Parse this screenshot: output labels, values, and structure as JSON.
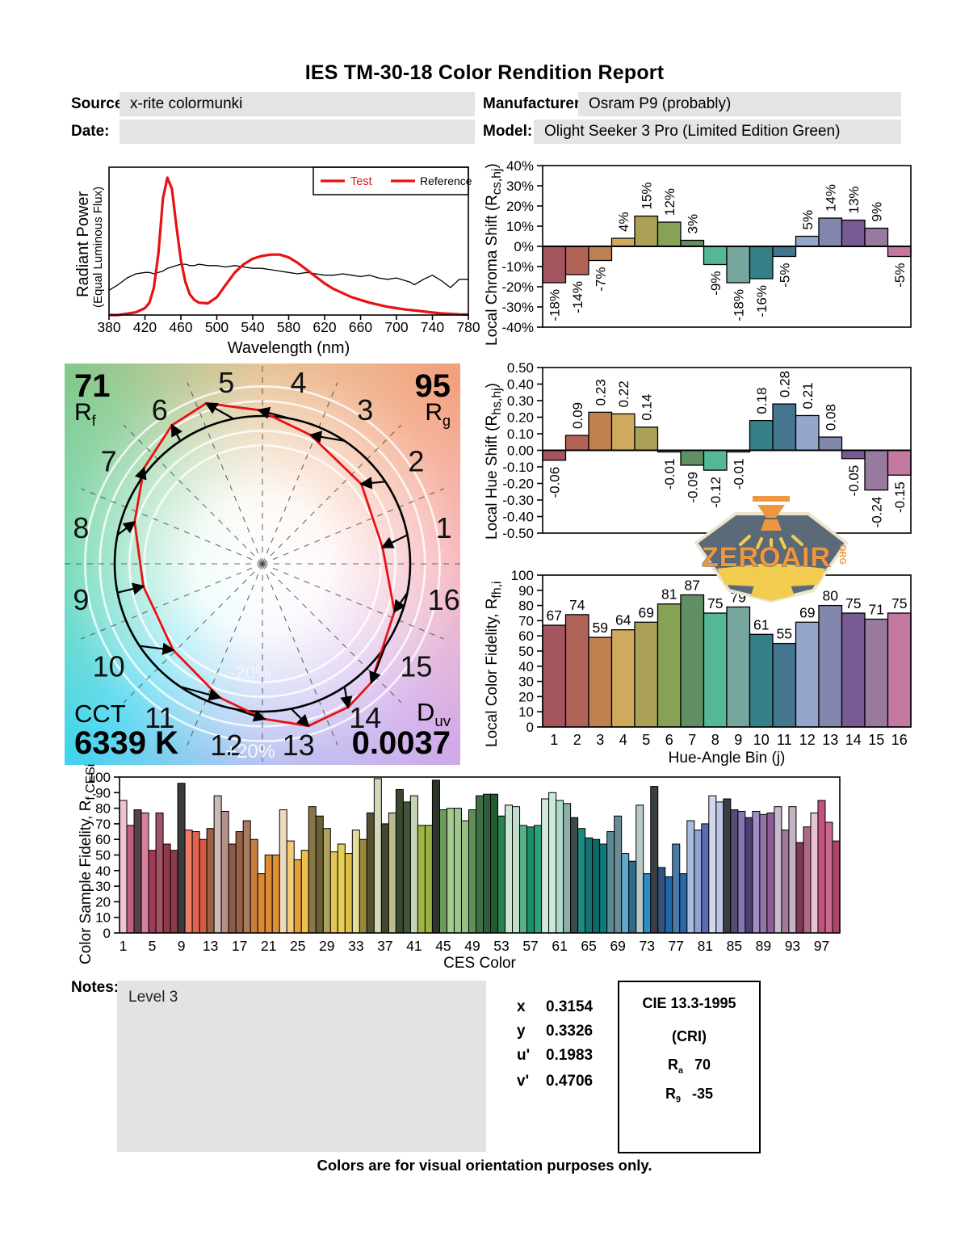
{
  "title": "IES TM-30-18 Color Rendition Report",
  "meta": {
    "source_label": "Source:",
    "source_value": "x-rite colormunki",
    "manufacturer_label": "Manufacturer:",
    "manufacturer_value": "Osram P9 (probably)",
    "date_label": "Date:",
    "date_value": "",
    "model_label": "Model:",
    "model_value": "Olight Seeker 3 Pro (Limited Edition Green)"
  },
  "colors": {
    "accent_red": "#e81113",
    "field_bg": "#e4e4e4",
    "bin_colors": [
      "#a4555e",
      "#b26358",
      "#c08150",
      "#cfa95e",
      "#aaa156",
      "#87a156",
      "#5f8f62",
      "#55b895",
      "#76a69e",
      "#338087",
      "#45768f",
      "#96a5cc",
      "#8487ad",
      "#765a93",
      "#977a9e",
      "#c579a0"
    ]
  },
  "chart_data": [
    {
      "id": "spd",
      "type": "line",
      "xlabel": "Wavelength (nm)",
      "ylabel_line1": "Radiant Power",
      "ylabel_line2": "(Equal Luminous Flux)",
      "xlim": [
        380,
        780
      ],
      "grid": false,
      "legend_position": "top-right",
      "x_ticks": [
        380,
        420,
        460,
        500,
        540,
        580,
        620,
        660,
        700,
        740,
        780
      ],
      "series": [
        {
          "name": "Test",
          "color": "#e81113",
          "x": [
            380,
            390,
            400,
            410,
            420,
            425,
            430,
            435,
            440,
            445,
            450,
            455,
            460,
            465,
            470,
            475,
            480,
            490,
            500,
            510,
            520,
            530,
            540,
            550,
            560,
            570,
            580,
            590,
            600,
            610,
            620,
            630,
            640,
            650,
            660,
            670,
            680,
            690,
            700,
            710,
            715,
            720,
            725,
            730,
            740,
            750,
            760,
            770,
            780
          ],
          "y": [
            0,
            0,
            0.01,
            0.02,
            0.05,
            0.09,
            0.2,
            0.45,
            0.85,
            1.0,
            0.92,
            0.65,
            0.4,
            0.24,
            0.15,
            0.11,
            0.09,
            0.085,
            0.13,
            0.22,
            0.31,
            0.37,
            0.41,
            0.43,
            0.44,
            0.44,
            0.42,
            0.38,
            0.33,
            0.28,
            0.23,
            0.19,
            0.16,
            0.13,
            0.11,
            0.09,
            0.075,
            0.06,
            0.05,
            0.04,
            0.037,
            0.033,
            0.03,
            0.026,
            0.018,
            0.012,
            0.008,
            0.005,
            0.003
          ]
        },
        {
          "name": "Reference",
          "color": "#000000",
          "x": [
            380,
            390,
            400,
            410,
            420,
            425,
            430,
            435,
            440,
            445,
            450,
            455,
            460,
            465,
            470,
            475,
            480,
            490,
            500,
            510,
            520,
            530,
            540,
            550,
            560,
            570,
            580,
            590,
            600,
            610,
            620,
            630,
            640,
            650,
            660,
            670,
            680,
            690,
            700,
            710,
            715,
            720,
            725,
            730,
            740,
            750,
            760,
            770,
            780
          ],
          "y": [
            0.18,
            0.22,
            0.27,
            0.3,
            0.31,
            0.31,
            0.3,
            0.31,
            0.32,
            0.34,
            0.35,
            0.36,
            0.37,
            0.37,
            0.36,
            0.36,
            0.37,
            0.36,
            0.36,
            0.35,
            0.36,
            0.35,
            0.34,
            0.34,
            0.33,
            0.32,
            0.31,
            0.3,
            0.31,
            0.3,
            0.29,
            0.29,
            0.3,
            0.29,
            0.28,
            0.29,
            0.27,
            0.26,
            0.27,
            0.25,
            0.24,
            0.22,
            0.24,
            0.26,
            0.29,
            0.25,
            0.2,
            0.26,
            0.26
          ]
        }
      ]
    },
    {
      "id": "local_chroma_shift",
      "type": "bar",
      "ylabel_main": "Local Chroma Shift (R",
      "ylabel_sub": "cs,hj",
      "ylabel_end": ")",
      "ylim": [
        -40,
        40
      ],
      "ytick_values": [
        40,
        30,
        20,
        10,
        0,
        -10,
        -20,
        -30,
        -40
      ],
      "ytick_labels": [
        "40%",
        "30%",
        "20%",
        "10%",
        "0%",
        "-10%",
        "-20%",
        "-30%",
        "-40%"
      ],
      "categories": [
        1,
        2,
        3,
        4,
        5,
        6,
        7,
        8,
        9,
        10,
        11,
        12,
        13,
        14,
        15,
        16
      ],
      "values": [
        -18,
        -14,
        -7,
        4,
        15,
        12,
        3,
        -9,
        -18,
        -16,
        -5,
        5,
        14,
        13,
        9,
        -5
      ],
      "value_labels": [
        "-18%",
        "-14%",
        "-7%",
        "4%",
        "15%",
        "12%",
        "3%",
        "-9%",
        "-18%",
        "-16%",
        "-5%",
        "5%",
        "14%",
        "13%",
        "9%",
        "-5%"
      ]
    },
    {
      "id": "local_hue_shift",
      "type": "bar",
      "ylabel_main": "Local Hue Shift (R",
      "ylabel_sub": "hs,hj",
      "ylabel_end": ")",
      "ylim": [
        -0.5,
        0.5
      ],
      "ytick_values": [
        0.5,
        0.4,
        0.3,
        0.2,
        0.1,
        0,
        -0.1,
        -0.2,
        -0.3,
        -0.4,
        -0.5
      ],
      "ytick_labels": [
        "0.50",
        "0.40",
        "0.30",
        "0.20",
        "0.10",
        "0.00",
        "-0.10",
        "-0.20",
        "-0.30",
        "-0.40",
        "-0.50"
      ],
      "categories": [
        1,
        2,
        3,
        4,
        5,
        6,
        7,
        8,
        9,
        10,
        11,
        12,
        13,
        14,
        15,
        16
      ],
      "values": [
        -0.06,
        0.09,
        0.23,
        0.22,
        0.14,
        -0.01,
        -0.09,
        -0.12,
        -0.01,
        0.18,
        0.28,
        0.21,
        0.08,
        -0.05,
        -0.24,
        -0.15
      ],
      "value_labels": [
        "-0.06",
        "0.09",
        "0.23",
        "0.22",
        "0.14",
        "-0.01",
        "-0.09",
        "-0.12",
        "-0.01",
        "0.18",
        "0.28",
        "0.21",
        "0.08",
        "-0.05",
        "-0.24",
        "-0.15"
      ]
    },
    {
      "id": "local_color_fidelity",
      "type": "bar",
      "xlabel": "Hue-Angle Bin (j)",
      "ylabel_main": "Local Color Fidelity, R",
      "ylabel_sub": "fh,i",
      "ylabel_end": "",
      "ylim": [
        0,
        100
      ],
      "ytick_values": [
        100,
        90,
        80,
        70,
        60,
        50,
        40,
        30,
        20,
        10,
        0
      ],
      "ytick_labels": [
        "100",
        "90",
        "80",
        "70",
        "60",
        "50",
        "40",
        "30",
        "20",
        "10",
        "0"
      ],
      "categories": [
        1,
        2,
        3,
        4,
        5,
        6,
        7,
        8,
        9,
        10,
        11,
        12,
        13,
        14,
        15,
        16
      ],
      "values": [
        67,
        74,
        59,
        64,
        69,
        81,
        87,
        75,
        79,
        61,
        55,
        69,
        80,
        75,
        71,
        75
      ],
      "value_labels": [
        "67",
        "74",
        "59",
        "64",
        "69",
        "81",
        "87",
        "75",
        "79",
        "61",
        "55",
        "69",
        "80",
        "75",
        "71",
        "75"
      ]
    },
    {
      "id": "ces_fidelity",
      "type": "bar",
      "xlabel": "CES Color",
      "ylabel_main": "Color Sample Fidelity, R",
      "ylabel_sub": "f,CESi",
      "ylabel_end": "",
      "ylim": [
        0,
        100
      ],
      "ytick_values": [
        100,
        90,
        80,
        70,
        60,
        50,
        40,
        30,
        20,
        10,
        0
      ],
      "ytick_labels": [
        "100",
        "90",
        "80",
        "70",
        "60",
        "50",
        "40",
        "30",
        "20",
        "10",
        "0"
      ],
      "xtick_labels": [
        1,
        5,
        9,
        13,
        17,
        21,
        25,
        29,
        33,
        37,
        41,
        45,
        49,
        53,
        57,
        61,
        65,
        69,
        73,
        77,
        81,
        85,
        89,
        93,
        97
      ],
      "values": [
        85,
        69,
        79,
        77,
        53,
        77,
        57,
        53,
        96,
        66,
        65,
        60,
        67,
        88,
        78,
        57,
        65,
        72,
        60,
        38,
        50,
        50,
        79,
        59,
        47,
        53,
        81,
        75,
        67,
        52,
        57,
        51,
        66,
        60,
        77,
        99,
        70,
        77,
        92,
        84,
        88,
        69,
        69,
        98,
        79,
        80,
        80,
        72,
        79,
        88,
        89,
        89,
        75,
        82,
        81,
        69,
        68,
        69,
        86,
        90,
        85,
        83,
        74,
        67,
        61,
        60,
        57,
        65,
        75,
        51,
        46,
        82,
        38,
        94,
        42,
        36,
        57,
        38,
        72,
        66,
        70,
        88,
        84,
        86,
        79,
        78,
        74,
        78,
        76,
        77,
        81,
        66,
        81,
        58,
        68,
        77,
        85,
        71,
        59
      ],
      "colors": [
        "#f0c3d2",
        "#bd5f80",
        "#564247",
        "#d87f9d",
        "#a13a55",
        "#a05466",
        "#8e3a4d",
        "#8a3c4c",
        "#3b3a3c",
        "#ec7e66",
        "#e06450",
        "#d55a40",
        "#9a5f45",
        "#cdb8b8",
        "#b59088",
        "#8a5c49",
        "#9a6149",
        "#a87b5e",
        "#c87e3e",
        "#dd8833",
        "#e08c36",
        "#e29038",
        "#ecdabc",
        "#f4cd7c",
        "#e2a03c",
        "#eec04e",
        "#877746",
        "#6c6038",
        "#ada15e",
        "#e3c455",
        "#e8d058",
        "#dec049",
        "#e4da9a",
        "#97893c",
        "#565231",
        "#d3d6ba",
        "#45452e",
        "#bcbc8c",
        "#39492f",
        "#45553c",
        "#c8d2b4",
        "#9cb545",
        "#98b148",
        "#2d352b",
        "#6b9a5c",
        "#a5ca92",
        "#9fc68c",
        "#96c083",
        "#5e9055",
        "#3e6e44",
        "#2c5e3a",
        "#215c31",
        "#2b8152",
        "#cbe3d3",
        "#c3dfcb",
        "#56b189",
        "#1e8f68",
        "#2fa07f",
        "#d1e7d9",
        "#cee7db",
        "#b0d8cc",
        "#8ab0a8",
        "#3d4a48",
        "#1e8a80",
        "#15706e",
        "#106866",
        "#0f7a7c",
        "#5a8a90",
        "#6a8a96",
        "#62aacc",
        "#2e6b8e",
        "#b8c8c8",
        "#2a8cc8",
        "#3a3f46",
        "#33527e",
        "#1f67ab",
        "#4a7aa6",
        "#2868b0",
        "#a8bce0",
        "#8fa2d4",
        "#5b6cb4",
        "#d4d8ee",
        "#c0c4e4",
        "#3c3c44",
        "#564e72",
        "#8478b4",
        "#4c3f70",
        "#a08cc8",
        "#9572a8",
        "#8f5c96",
        "#c2bccc",
        "#a07898",
        "#c4b2c2",
        "#7a3a52",
        "#b06888",
        "#e8c2d4",
        "#c0527e",
        "#c86a90",
        "#b04468"
      ]
    }
  ],
  "cvg": {
    "rf_value": "71",
    "rf_label_main": "R",
    "rf_label_sub": "f",
    "rg_value": "95",
    "rg_label_main": "R",
    "rg_label_sub": "g",
    "cct_label": "CCT",
    "cct_value": "6339 K",
    "duv_label_main": "D",
    "duv_label_sub": "uv",
    "duv_value": "0.0037",
    "ring_label_outer": "+20%",
    "ring_label_inner": "-20%",
    "bin_numbers": [
      1,
      2,
      3,
      4,
      5,
      6,
      7,
      8,
      9,
      10,
      11,
      12,
      13,
      14,
      15,
      16
    ]
  },
  "badge": {
    "text": "ZEROAIR",
    "org": "ORG"
  },
  "notes": {
    "label": "Notes:",
    "content": "Level 3"
  },
  "chromaticity": {
    "rows": [
      {
        "label": "x",
        "value": "0.3154"
      },
      {
        "label": "y",
        "value": "0.3326"
      },
      {
        "label": "u'",
        "value": "0.1983"
      },
      {
        "label": "v'",
        "value": "0.4706"
      }
    ]
  },
  "cri_box": {
    "line1": "CIE 13.3-1995",
    "line2": "(CRI)",
    "ra_main": "R",
    "ra_sub": "a",
    "ra_value": "70",
    "r9_main": "R",
    "r9_sub": "9",
    "r9_value": "-35"
  },
  "footer": "Colors are for visual orientation purposes only."
}
